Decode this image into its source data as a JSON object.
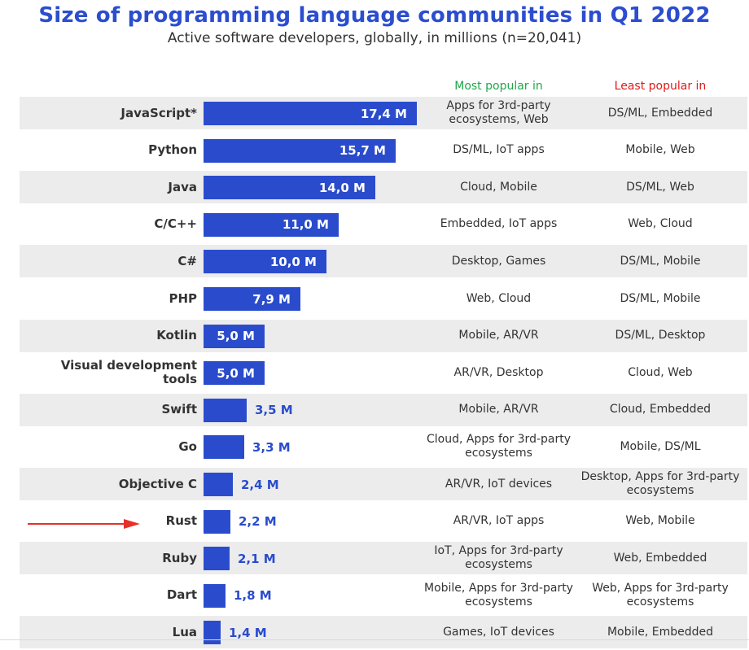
{
  "title": "Size of programming language communities in Q1 2022",
  "subtitle": "Active software developers, globally, in millions (n=20,041)",
  "columns": {
    "most_popular": "Most popular in",
    "least_popular": "Least popular in"
  },
  "colors": {
    "bar": "#2a4ccc",
    "title": "#2b4dcf",
    "most": "#1fa84a",
    "least": "#e01b1b",
    "arrow": "#e8302a"
  },
  "annotation": {
    "arrow_target": "Rust",
    "icon": "red-arrow-icon"
  },
  "chart_data": {
    "type": "bar",
    "orientation": "horizontal",
    "title": "Size of programming language communities in Q1 2022",
    "subtitle": "Active software developers, globally, in millions (n=20,041)",
    "xlim": [
      0,
      18
    ],
    "rows": [
      {
        "language": "JavaScript*",
        "value": 17.4,
        "label": "17,4 M",
        "most": "Apps for 3rd-party ecosystems, Web",
        "least": "DS/ML, Embedded"
      },
      {
        "language": "Python",
        "value": 15.7,
        "label": "15,7 M",
        "most": "DS/ML, IoT apps",
        "least": "Mobile, Web"
      },
      {
        "language": "Java",
        "value": 14.0,
        "label": "14,0 M",
        "most": "Cloud, Mobile",
        "least": "DS/ML, Web"
      },
      {
        "language": "C/C++",
        "value": 11.0,
        "label": "11,0 M",
        "most": "Embedded, IoT apps",
        "least": "Web, Cloud"
      },
      {
        "language": "C#",
        "value": 10.0,
        "label": "10,0 M",
        "most": "Desktop, Games",
        "least": "DS/ML, Mobile"
      },
      {
        "language": "PHP",
        "value": 7.9,
        "label": "7,9 M",
        "most": "Web, Cloud",
        "least": "DS/ML, Mobile"
      },
      {
        "language": "Kotlin",
        "value": 5.0,
        "label": "5,0 M",
        "most": "Mobile, AR/VR",
        "least": "DS/ML, Desktop"
      },
      {
        "language": "Visual development tools",
        "value": 5.0,
        "label": "5,0 M",
        "most": "AR/VR, Desktop",
        "least": "Cloud, Web"
      },
      {
        "language": "Swift",
        "value": 3.5,
        "label": "3,5 M",
        "most": "Mobile, AR/VR",
        "least": "Cloud, Embedded"
      },
      {
        "language": "Go",
        "value": 3.3,
        "label": "3,3 M",
        "most": "Cloud, Apps for 3rd-party ecosystems",
        "least": "Mobile, DS/ML"
      },
      {
        "language": "Objective C",
        "value": 2.4,
        "label": "2,4 M",
        "most": "AR/VR, IoT devices",
        "least": "Desktop, Apps for 3rd-party ecosystems"
      },
      {
        "language": "Rust",
        "value": 2.2,
        "label": "2,2 M",
        "most": "AR/VR, IoT apps",
        "least": "Web, Mobile"
      },
      {
        "language": "Ruby",
        "value": 2.1,
        "label": "2,1 M",
        "most": "IoT, Apps for 3rd-party ecosystems",
        "least": "Web, Embedded"
      },
      {
        "language": "Dart",
        "value": 1.8,
        "label": "1,8 M",
        "most": "Mobile, Apps for 3rd-party ecosystems",
        "least": "Web, Apps for 3rd-party ecosystems"
      },
      {
        "language": "Lua",
        "value": 1.4,
        "label": "1,4 M",
        "most": "Games, IoT devices",
        "least": "Mobile, Embedded"
      }
    ]
  }
}
